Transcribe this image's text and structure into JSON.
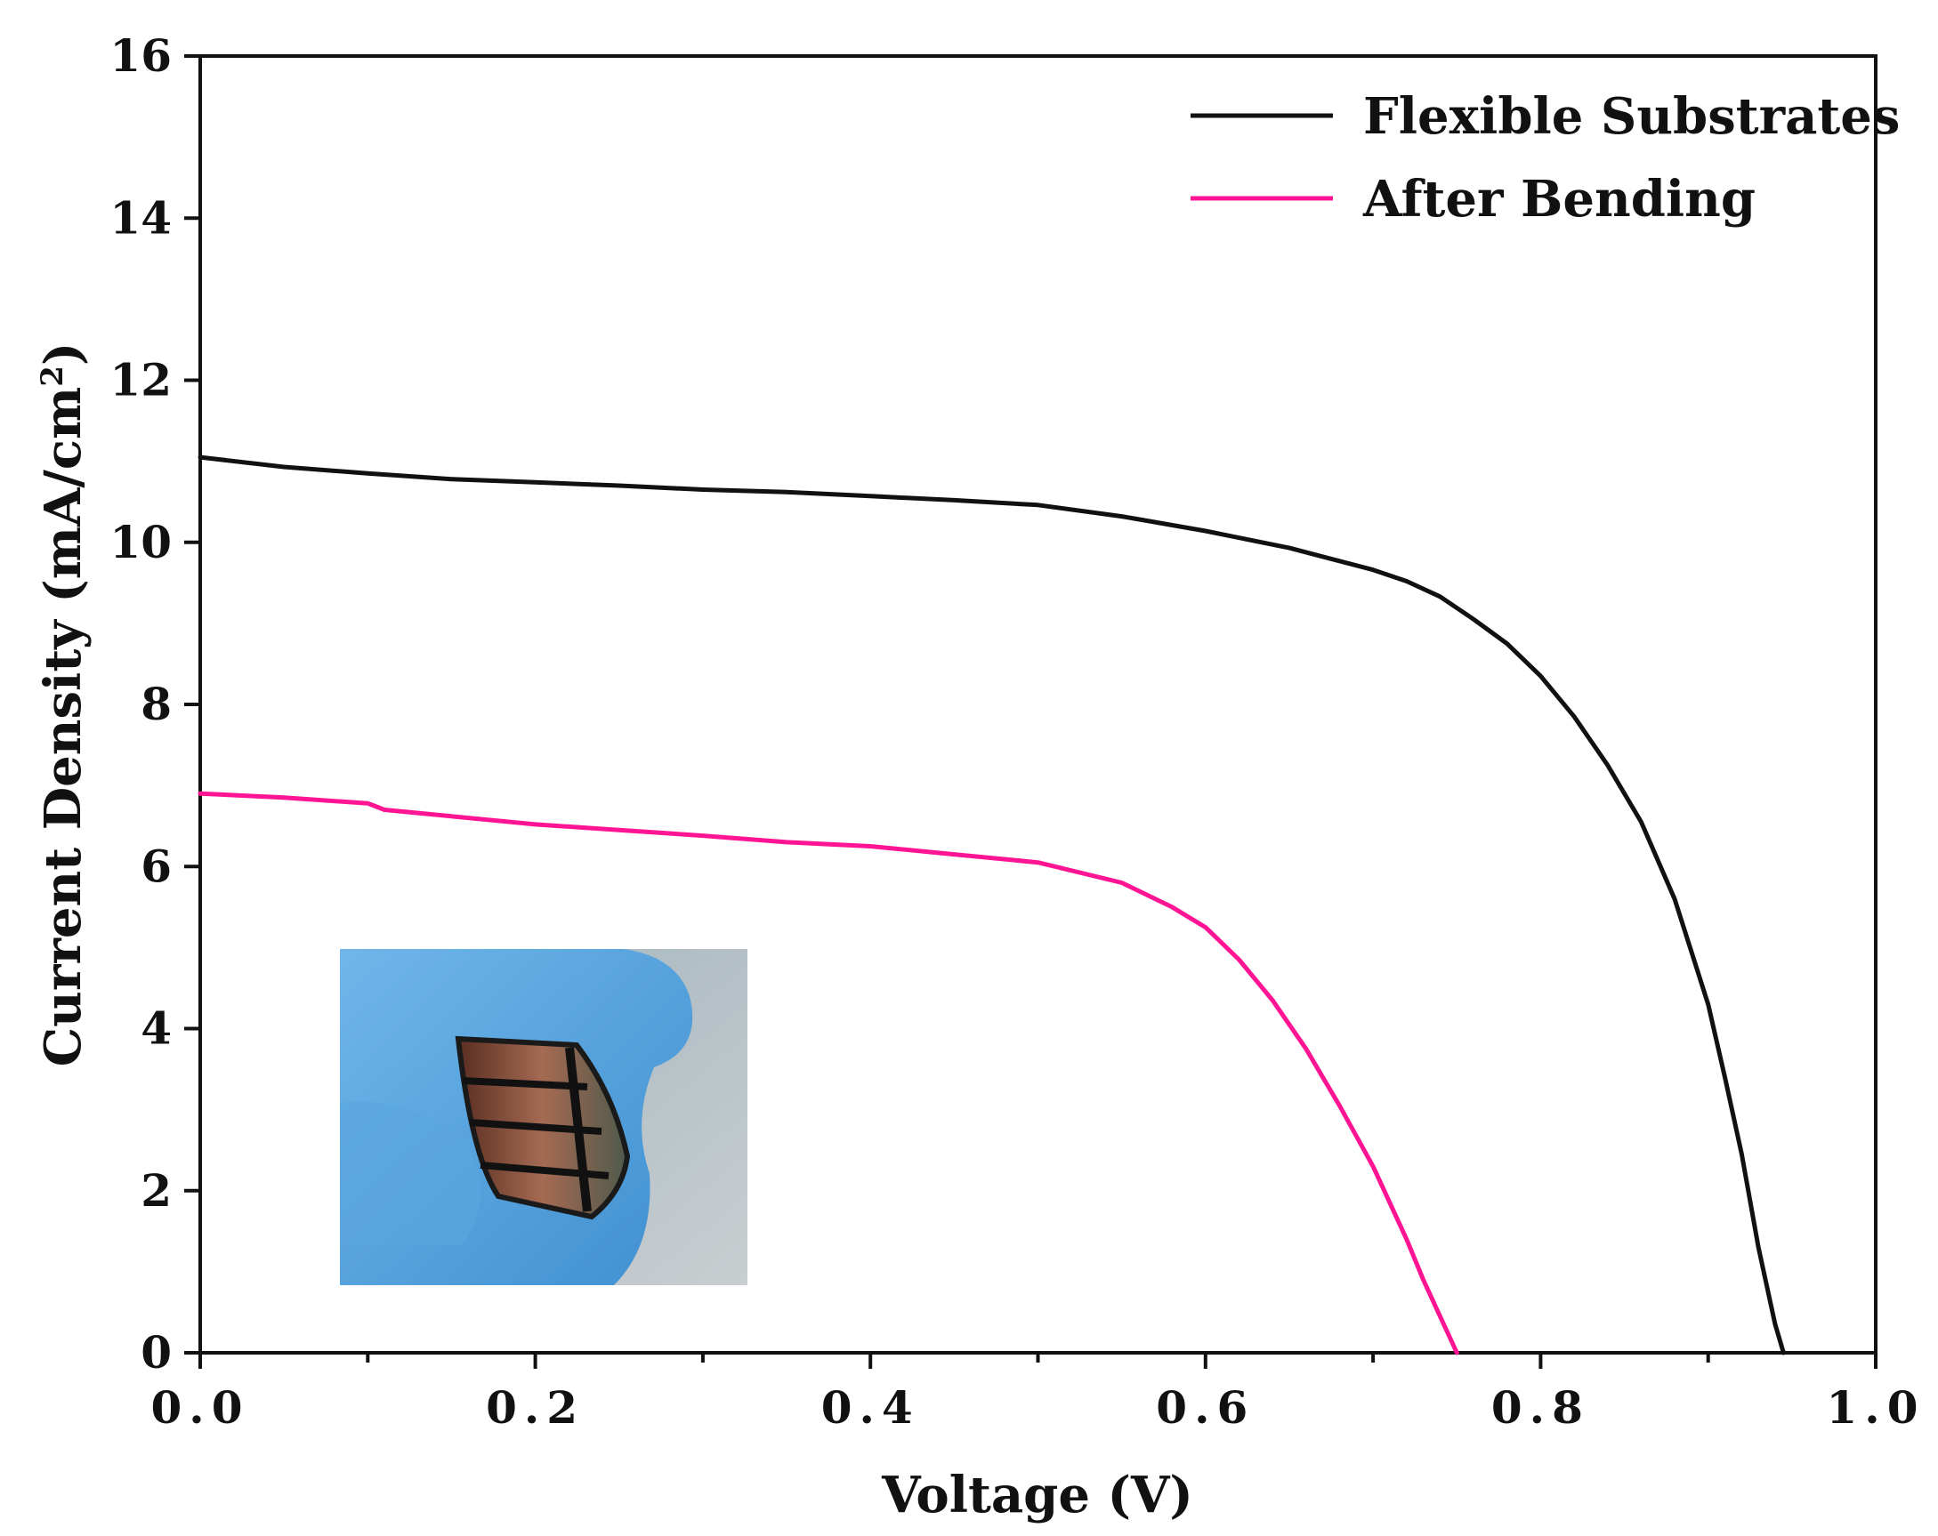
{
  "chart_data": {
    "type": "line",
    "title": "",
    "xlabel": "Voltage (V)",
    "ylabel": {
      "prefix": "Current Density (mA/cm",
      "superscript": "2",
      "suffix": ")"
    },
    "xlim": [
      0.0,
      1.0
    ],
    "ylim": [
      0,
      16
    ],
    "x_ticks": [
      0.0,
      0.1,
      0.2,
      0.3,
      0.4,
      0.5,
      0.6,
      0.7,
      0.8,
      0.9,
      1.0
    ],
    "x_tick_labels": [
      "0.0",
      "0.2",
      "0.4",
      "0.6",
      "0.8",
      "1.0"
    ],
    "x_tick_label_values": [
      0.0,
      0.2,
      0.4,
      0.6,
      0.8,
      1.0
    ],
    "y_ticks": [
      0,
      2,
      4,
      6,
      8,
      10,
      12,
      14,
      16
    ],
    "y_tick_labels": [
      "0",
      "2",
      "4",
      "6",
      "8",
      "10",
      "12",
      "14",
      "16"
    ],
    "grid": false,
    "legend_position": "top-right",
    "inset_image": {
      "description_icon": "photo-icon",
      "position": "lower-left"
    },
    "series": [
      {
        "name": "Flexible Substrates",
        "color": "#111111",
        "x": [
          0.0,
          0.05,
          0.1,
          0.15,
          0.2,
          0.25,
          0.3,
          0.35,
          0.4,
          0.45,
          0.5,
          0.55,
          0.6,
          0.65,
          0.7,
          0.72,
          0.74,
          0.76,
          0.78,
          0.8,
          0.82,
          0.84,
          0.86,
          0.88,
          0.9,
          0.91,
          0.92,
          0.93,
          0.94,
          0.945
        ],
        "y": [
          11.05,
          10.93,
          10.85,
          10.78,
          10.74,
          10.7,
          10.65,
          10.62,
          10.57,
          10.52,
          10.46,
          10.32,
          10.14,
          9.93,
          9.66,
          9.52,
          9.33,
          9.05,
          8.75,
          8.35,
          7.85,
          7.25,
          6.55,
          5.6,
          4.3,
          3.4,
          2.45,
          1.3,
          0.35,
          0.0
        ]
      },
      {
        "name": "After Bending",
        "color": "#ff1493",
        "x": [
          0.0,
          0.05,
          0.1,
          0.11,
          0.15,
          0.2,
          0.25,
          0.3,
          0.35,
          0.4,
          0.45,
          0.5,
          0.55,
          0.58,
          0.6,
          0.62,
          0.64,
          0.66,
          0.68,
          0.7,
          0.72,
          0.73,
          0.74,
          0.75
        ],
        "y": [
          6.9,
          6.85,
          6.78,
          6.7,
          6.62,
          6.52,
          6.45,
          6.38,
          6.3,
          6.25,
          6.15,
          6.05,
          5.8,
          5.5,
          5.25,
          4.85,
          4.35,
          3.75,
          3.05,
          2.3,
          1.4,
          0.9,
          0.45,
          0.0
        ]
      }
    ]
  }
}
